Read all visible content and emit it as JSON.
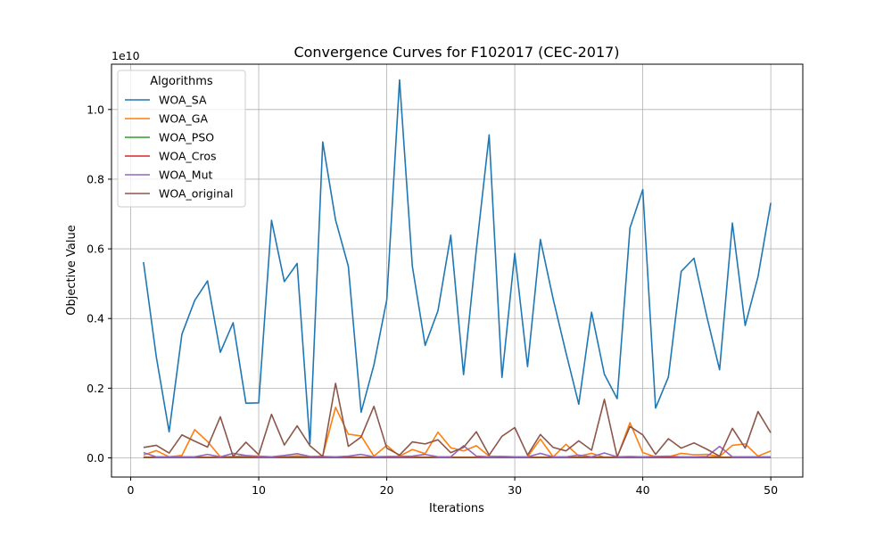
{
  "chart_data": {
    "type": "line",
    "title": "Convergence Curves for F102017 (CEC-2017)",
    "xlabel": "Iterations",
    "ylabel": "Objective Value",
    "y_multiplier_label": "1e10",
    "xlim": [
      -1.5,
      52.5
    ],
    "ylim": [
      -0.055,
      1.13
    ],
    "x_ticks": [
      0,
      10,
      20,
      30,
      40,
      50
    ],
    "x_tick_labels": [
      "0",
      "10",
      "20",
      "30",
      "40",
      "50"
    ],
    "y_ticks": [
      0.0,
      0.2,
      0.4,
      0.6,
      0.8,
      1.0
    ],
    "y_tick_labels": [
      "0.0",
      "0.2",
      "0.4",
      "0.6",
      "0.8",
      "1.0"
    ],
    "grid": true,
    "legend": {
      "title": "Algorithms",
      "placement": "top-left"
    },
    "x": [
      1,
      2,
      3,
      4,
      5,
      6,
      7,
      8,
      9,
      10,
      11,
      12,
      13,
      14,
      15,
      16,
      17,
      18,
      19,
      20,
      21,
      22,
      23,
      24,
      25,
      26,
      27,
      28,
      29,
      30,
      31,
      32,
      33,
      34,
      35,
      36,
      37,
      38,
      39,
      40,
      41,
      42,
      43,
      44,
      45,
      46,
      47,
      48,
      49,
      50
    ],
    "series": [
      {
        "name": "WOA_SA",
        "color": "#1f77b4",
        "values": [
          0.562,
          0.29,
          0.075,
          0.355,
          0.452,
          0.508,
          0.303,
          0.388,
          0.157,
          0.158,
          0.682,
          0.506,
          0.558,
          0.04,
          0.907,
          0.683,
          0.55,
          0.131,
          0.267,
          0.453,
          1.085,
          0.55,
          0.323,
          0.422,
          0.639,
          0.239,
          0.598,
          0.927,
          0.231,
          0.587,
          0.262,
          0.627,
          0.456,
          0.302,
          0.154,
          0.418,
          0.24,
          0.17,
          0.66,
          0.77,
          0.143,
          0.232,
          0.535,
          0.573,
          0.406,
          0.253,
          0.674,
          0.38,
          0.52,
          0.732
        ]
      },
      {
        "name": "WOA_GA",
        "color": "#ff7f0e",
        "values": [
          0.008,
          0.021,
          0.003,
          0.007,
          0.081,
          0.047,
          0.003,
          0.004,
          0.006,
          0.005,
          0.003,
          0.003,
          0.006,
          0.002,
          0.006,
          0.145,
          0.068,
          0.063,
          0.005,
          0.036,
          0.005,
          0.024,
          0.012,
          0.074,
          0.029,
          0.02,
          0.035,
          0.005,
          0.004,
          0.003,
          0.003,
          0.054,
          0.003,
          0.039,
          0.005,
          0.013,
          0.002,
          0.002,
          0.101,
          0.015,
          0.003,
          0.003,
          0.013,
          0.009,
          0.01,
          0.004,
          0.036,
          0.04,
          0.005,
          0.02
        ]
      },
      {
        "name": "WOA_PSO",
        "color": "#2ca02c",
        "values": [
          0.002,
          0.002,
          0.002,
          0.002,
          0.002,
          0.002,
          0.002,
          0.002,
          0.002,
          0.002,
          0.002,
          0.002,
          0.002,
          0.002,
          0.002,
          0.002,
          0.002,
          0.002,
          0.002,
          0.002,
          0.002,
          0.002,
          0.002,
          0.002,
          0.002,
          0.002,
          0.002,
          0.002,
          0.002,
          0.002,
          0.002,
          0.002,
          0.002,
          0.002,
          0.002,
          0.002,
          0.002,
          0.002,
          0.002,
          0.002,
          0.002,
          0.002,
          0.002,
          0.002,
          0.002,
          0.002,
          0.002,
          0.002,
          0.002,
          0.002
        ]
      },
      {
        "name": "WOA_Cros",
        "color": "#d62728",
        "values": [
          0.001,
          0.001,
          0.001,
          0.001,
          0.001,
          0.001,
          0.001,
          0.001,
          0.001,
          0.001,
          0.001,
          0.001,
          0.001,
          0.001,
          0.001,
          0.001,
          0.001,
          0.001,
          0.001,
          0.001,
          0.001,
          0.001,
          0.001,
          0.001,
          0.001,
          0.001,
          0.001,
          0.001,
          0.001,
          0.001,
          0.001,
          0.001,
          0.001,
          0.001,
          0.001,
          0.001,
          0.001,
          0.001,
          0.001,
          0.001,
          0.001,
          0.001,
          0.001,
          0.001,
          0.001,
          0.001,
          0.001,
          0.001,
          0.001,
          0.001
        ]
      },
      {
        "name": "WOA_Mut",
        "color": "#9467bd",
        "values": [
          0.015,
          0.003,
          0.003,
          0.003,
          0.003,
          0.01,
          0.003,
          0.013,
          0.007,
          0.004,
          0.003,
          0.007,
          0.012,
          0.004,
          0.004,
          0.003,
          0.005,
          0.01,
          0.003,
          0.004,
          0.004,
          0.005,
          0.01,
          0.003,
          0.003,
          0.035,
          0.005,
          0.003,
          0.004,
          0.003,
          0.003,
          0.013,
          0.003,
          0.003,
          0.008,
          0.003,
          0.014,
          0.003,
          0.004,
          0.003,
          0.004,
          0.005,
          0.003,
          0.003,
          0.004,
          0.033,
          0.003,
          0.003,
          0.003,
          0.003
        ]
      },
      {
        "name": "WOA_original",
        "color": "#8c564b",
        "values": [
          0.03,
          0.036,
          0.014,
          0.066,
          0.048,
          0.031,
          0.118,
          0.004,
          0.045,
          0.009,
          0.125,
          0.037,
          0.092,
          0.035,
          0.004,
          0.214,
          0.033,
          0.06,
          0.148,
          0.028,
          0.008,
          0.046,
          0.04,
          0.052,
          0.015,
          0.03,
          0.075,
          0.008,
          0.062,
          0.087,
          0.008,
          0.067,
          0.03,
          0.02,
          0.049,
          0.022,
          0.168,
          0.003,
          0.09,
          0.066,
          0.01,
          0.055,
          0.028,
          0.043,
          0.025,
          0.005,
          0.085,
          0.028,
          0.133,
          0.072
        ]
      }
    ]
  }
}
